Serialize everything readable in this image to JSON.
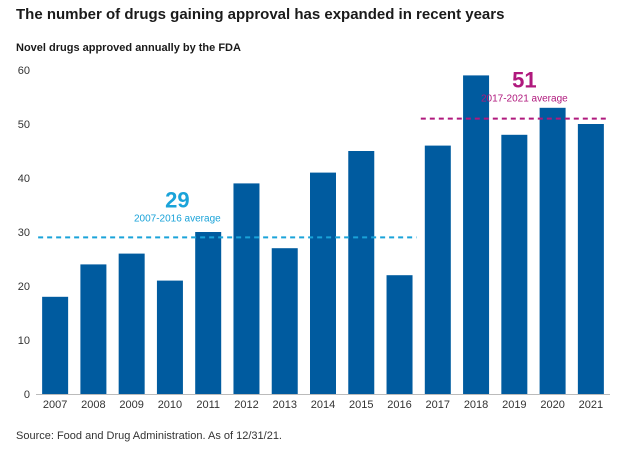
{
  "title": "The number of drugs gaining approval has expanded in recent years",
  "source": "Source: Food and Drug Administration. As of 12/31/21.",
  "colors": {
    "bar": "#005b9f",
    "avg1": "#1aa3d9",
    "avg2": "#b0197d"
  },
  "chart_data": {
    "type": "bar",
    "title": "Novel drugs approved annually by the FDA",
    "xlabel": "",
    "ylabel": "",
    "ylim": [
      0,
      60
    ],
    "yticks": [
      0,
      10,
      20,
      30,
      40,
      50,
      60
    ],
    "grid": false,
    "categories": [
      "2007",
      "2008",
      "2009",
      "2010",
      "2011",
      "2012",
      "2013",
      "2014",
      "2015",
      "2016",
      "2017",
      "2018",
      "2019",
      "2020",
      "2021"
    ],
    "values": [
      18,
      24,
      26,
      21,
      30,
      39,
      27,
      41,
      45,
      22,
      46,
      59,
      48,
      53,
      50
    ],
    "averages": [
      {
        "value": 29,
        "value_label": "29",
        "label": "2007-2016 average",
        "from": "2007",
        "to": "2016"
      },
      {
        "value": 51,
        "value_label": "51",
        "label": "2017-2021 average",
        "from": "2017",
        "to": "2021"
      }
    ]
  }
}
